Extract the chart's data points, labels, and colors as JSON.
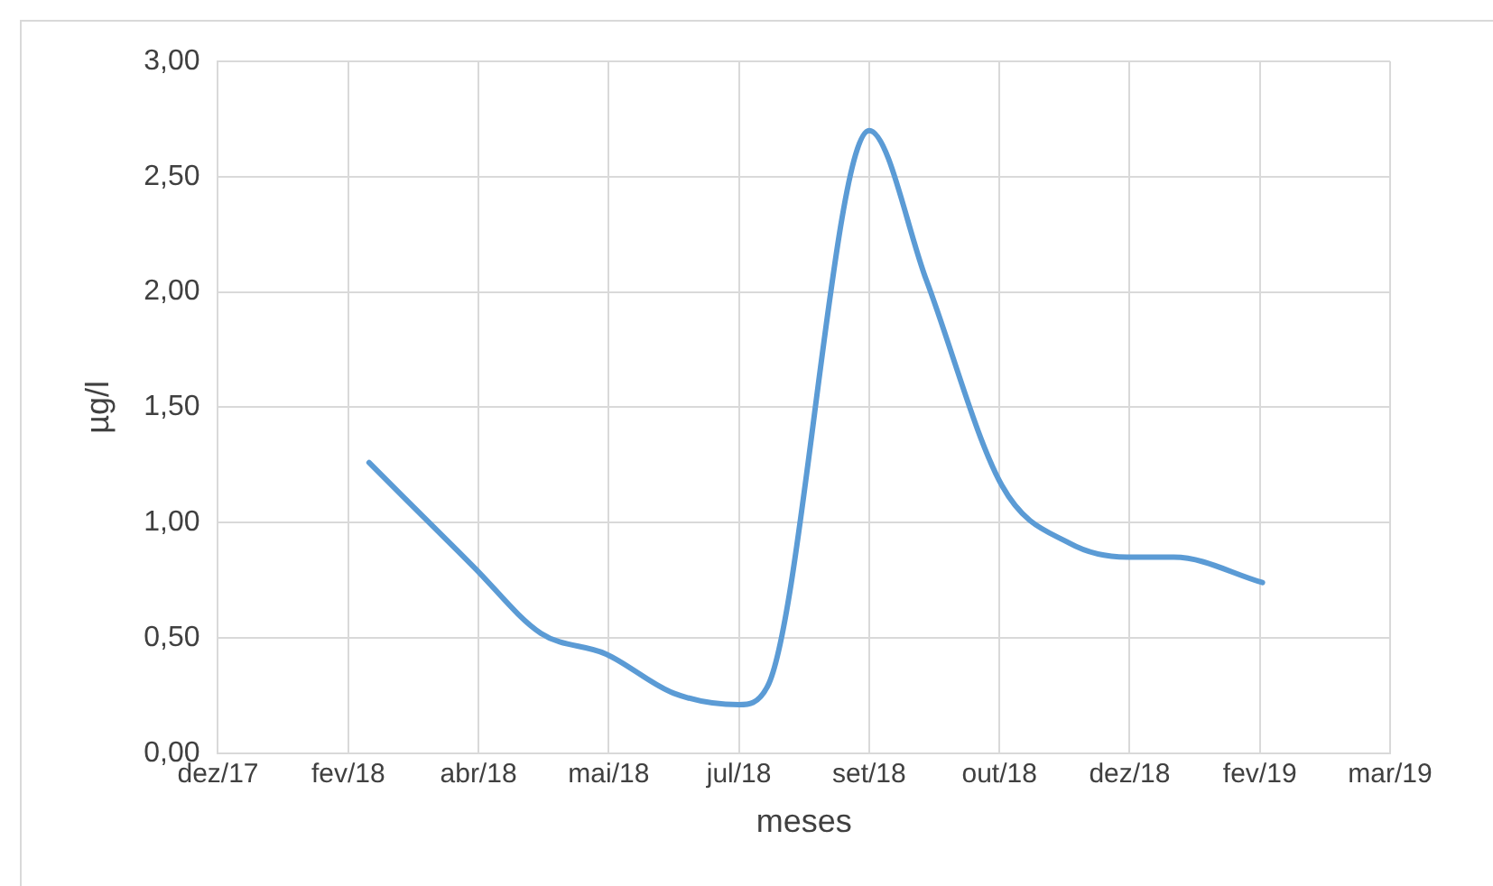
{
  "chart_data": {
    "type": "line",
    "xlabel": "meses",
    "ylabel": "µg/l",
    "x": [
      "2018-02-27",
      "2018-04-08",
      "2018-05-04",
      "2018-05-29",
      "2018-06-24",
      "2018-07-19",
      "2018-07-30",
      "2018-09-07",
      "2018-09-29",
      "2018-10-28",
      "2018-11-23",
      "2018-12-15",
      "2019-01-02",
      "2019-02-05"
    ],
    "series": [
      {
        "color": "#5b9bd5",
        "values": [
          1.26,
          0.81,
          0.52,
          0.43,
          0.26,
          0.21,
          0.29,
          2.7,
          2.05,
          1.16,
          0.91,
          0.85,
          0.85,
          0.74
        ]
      }
    ],
    "xlim": [
      "2017-12-31",
      "2019-03-26"
    ],
    "xticks": [
      {
        "value": "2017-12-31",
        "label": "dez/17"
      },
      {
        "value": "2018-02-19",
        "label": "fev/18"
      },
      {
        "value": "2018-04-10",
        "label": "abr/18"
      },
      {
        "value": "2018-05-30",
        "label": "mai/18"
      },
      {
        "value": "2018-07-19",
        "label": "jul/18"
      },
      {
        "value": "2018-09-07",
        "label": "set/18"
      },
      {
        "value": "2018-10-27",
        "label": "out/18"
      },
      {
        "value": "2018-12-16",
        "label": "dez/18"
      },
      {
        "value": "2019-02-04",
        "label": "fev/19"
      },
      {
        "value": "2019-03-26",
        "label": "mar/19"
      }
    ],
    "ylim": [
      0,
      3
    ],
    "yticks": [
      {
        "value": 0,
        "label": "0,00"
      },
      {
        "value": 0.5,
        "label": "0,50"
      },
      {
        "value": 1,
        "label": "1,00"
      },
      {
        "value": 1.5,
        "label": "1,50"
      },
      {
        "value": 2,
        "label": "2,00"
      },
      {
        "value": 2.5,
        "label": "2,50"
      },
      {
        "value": 3,
        "label": "3,00"
      }
    ],
    "grid": true,
    "legend": false,
    "marker": "none",
    "line_style": "solid"
  }
}
